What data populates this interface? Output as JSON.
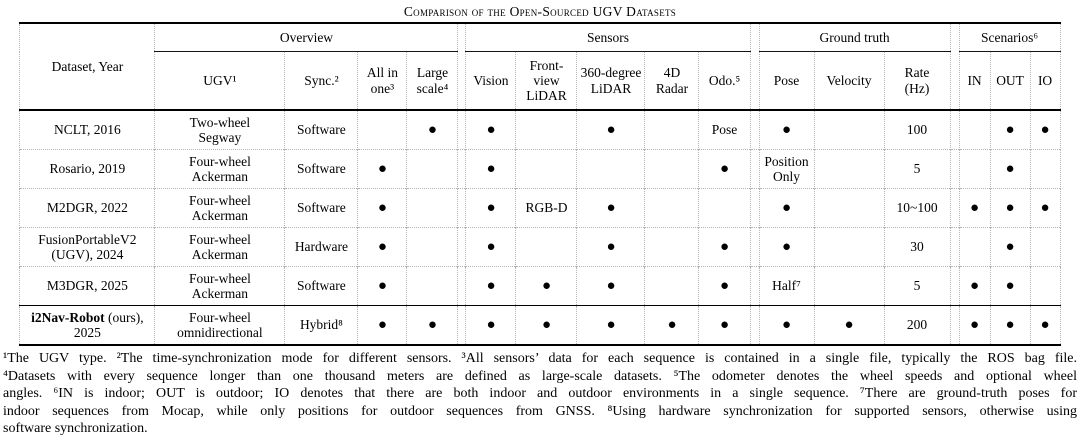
{
  "title": "Comparison of the Open-Sourced UGV Datasets",
  "table": {
    "dot_symbol": "●",
    "header": {
      "dataset_year": "Dataset, Year",
      "groups": [
        {
          "label": "Overview"
        },
        {
          "label": "Sensors"
        },
        {
          "label": "Ground truth"
        },
        {
          "label": "Scenarios⁶"
        }
      ],
      "columns": [
        "UGV¹",
        "Sync.²",
        "All in one³",
        "Large scale⁴",
        "Vision",
        "Front-view LiDAR",
        "360-degree LiDAR",
        "4D Radar",
        "Odo.⁵",
        "Pose",
        "Velocity",
        "Rate (Hz)",
        "IN",
        "OUT",
        "IO"
      ]
    },
    "rows": [
      {
        "ours": false,
        "dataset": {
          "bold": "",
          "text": "NCLT, 2016"
        },
        "cells": [
          "Two-wheel Segway",
          "Software",
          "",
          "●",
          "●",
          "",
          "●",
          "",
          "Pose",
          "●",
          "",
          "100",
          "",
          "●",
          "●"
        ]
      },
      {
        "ours": false,
        "dataset": {
          "bold": "",
          "text": "Rosario, 2019"
        },
        "cells": [
          "Four-wheel Ackerman",
          "Software",
          "●",
          "",
          "●",
          "",
          "",
          "",
          "●",
          "Position Only",
          "",
          "5",
          "",
          "●",
          ""
        ]
      },
      {
        "ours": false,
        "dataset": {
          "bold": "",
          "text": "M2DGR, 2022"
        },
        "cells": [
          "Four-wheel Ackerman",
          "Software",
          "●",
          "",
          "●",
          "RGB-D",
          "●",
          "",
          "",
          "●",
          "",
          "10~100",
          "●",
          "●",
          "●"
        ]
      },
      {
        "ours": false,
        "dataset": {
          "bold": "",
          "text": "FusionPortableV2 (UGV), 2024"
        },
        "cells": [
          "Four-wheel Ackerman",
          "Hardware",
          "●",
          "",
          "●",
          "",
          "●",
          "",
          "●",
          "●",
          "",
          "30",
          "",
          "●",
          ""
        ]
      },
      {
        "ours": false,
        "dataset": {
          "bold": "",
          "text": "M3DGR, 2025"
        },
        "cells": [
          "Four-wheel Ackerman",
          "Software",
          "●",
          "",
          "●",
          "●",
          "●",
          "",
          "●",
          "Half⁷",
          "",
          "5",
          "●",
          "●",
          ""
        ]
      },
      {
        "ours": true,
        "dataset": {
          "bold": "i2Nav-Robot",
          "text": " (ours), 2025"
        },
        "cells": [
          "Four-wheel omnidirectional",
          "Hybrid⁸",
          "●",
          "●",
          "●",
          "●",
          "●",
          "●",
          "●",
          "●",
          "●",
          "200",
          "●",
          "●",
          "●"
        ]
      }
    ]
  },
  "footnotes": {
    "lines": [
      "¹The UGV type. ²The time-synchronization mode for different sensors. ³All sensors’ data for each sequence is contained in a single file, typically the ROS bag file.",
      "⁴Datasets with every sequence longer than one thousand meters are defined as large-scale datasets. ⁵The odometer denotes the wheel speeds and optional wheel",
      "angles. ⁶IN is indoor; OUT is outdoor; IO denotes that there are both indoor and outdoor environments in a single sequence. ⁷There are ground-truth poses for",
      "indoor sequences from Mocap, while only positions for outdoor sequences from GNSS. ⁸Using hardware synchronization for supported sensors, otherwise using",
      "software synchronization."
    ]
  }
}
